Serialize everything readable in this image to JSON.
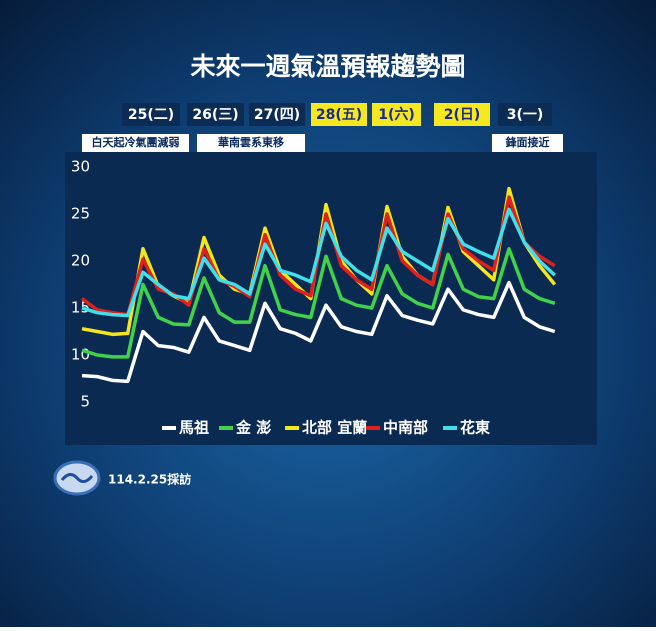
{
  "title": "未來一週氣溫預報趨勢圖",
  "days": [
    {
      "label": "25(二)",
      "highlight": false
    },
    {
      "label": "26(三)",
      "highlight": false
    },
    {
      "label": "27(四)",
      "highlight": false
    },
    {
      "label": "28(五)",
      "highlight": true
    },
    {
      "label": "1(六)",
      "highlight": true
    },
    {
      "label": "2(日)",
      "highlight": true
    },
    {
      "label": "3(一)",
      "highlight": false
    }
  ],
  "notes": [
    "白天起冷氣團減弱",
    "華南雲系東移",
    "鋒面接近"
  ],
  "chart_data": {
    "type": "line",
    "ylim": [
      5,
      30
    ],
    "yticks": [
      5,
      10,
      15,
      20,
      25,
      30
    ],
    "grid": false,
    "series": [
      {
        "name": "馬祖",
        "color": "#ffffff",
        "values": [
          7.8,
          7.7,
          7.3,
          7.2,
          12.5,
          11,
          10.8,
          10.3,
          14,
          11.5,
          11,
          10.5,
          15.5,
          12.8,
          12.3,
          11.5,
          15.3,
          13,
          12.5,
          12.2,
          16.3,
          14.2,
          13.7,
          13.3,
          17,
          14.8,
          14.3,
          14,
          17.7,
          14,
          13,
          12.5
        ]
      },
      {
        "name": "金 澎",
        "color": "#3fd24a",
        "values": [
          10.5,
          10,
          9.8,
          9.8,
          17.5,
          14,
          13.3,
          13.2,
          18.2,
          14.5,
          13.5,
          13.5,
          19.5,
          14.8,
          14.3,
          14,
          20.5,
          16,
          15.3,
          15,
          19.5,
          16.5,
          15.5,
          15,
          20.7,
          17,
          16.2,
          16,
          21.3,
          17,
          16,
          15.5
        ]
      },
      {
        "name": "北部 宜蘭",
        "color": "#f4e61c",
        "values": [
          12.8,
          12.5,
          12.2,
          12.3,
          21.3,
          17.3,
          16.3,
          15.5,
          22.5,
          18.5,
          17,
          16.5,
          23.5,
          19,
          17.5,
          16,
          26,
          20,
          18,
          16.5,
          25.8,
          20.5,
          18.5,
          17.5,
          25.7,
          21,
          19.5,
          18,
          27.7,
          22,
          19.5,
          17.5
        ]
      },
      {
        "name": "中南部",
        "color": "#e0201c",
        "values": [
          16,
          14.8,
          14.5,
          14.3,
          20.2,
          17,
          16.5,
          15.3,
          21.3,
          18,
          17.3,
          16.2,
          22.8,
          18.5,
          17,
          16.3,
          25,
          19.5,
          18,
          17,
          25,
          20,
          18.5,
          17.5,
          25,
          21.3,
          20,
          19,
          26.8,
          22,
          20.5,
          19.5
        ]
      },
      {
        "name": "花東",
        "color": "#3fe0ea",
        "values": [
          15,
          14.5,
          14.3,
          14.2,
          18.8,
          17.5,
          16.3,
          16,
          20.3,
          18,
          17.5,
          16.5,
          21.8,
          19,
          18.5,
          17.8,
          24,
          20.5,
          19,
          18,
          23.5,
          21,
          20,
          19,
          24.5,
          21.8,
          21,
          20.3,
          25.5,
          22,
          20,
          18.5
        ]
      }
    ]
  },
  "footer": "114.2.25採訪"
}
